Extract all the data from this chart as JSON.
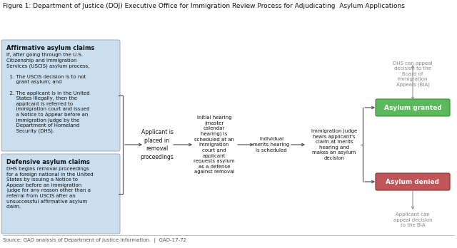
{
  "title": "Figure 1: Department of Justice (DOJ) Executive Office for Immigration Review Process for Adjudicating  Asylum Applications",
  "title_fontsize": 6.5,
  "bg_color": "#ffffff",
  "box_affirmative_color": "#c9dff0",
  "box_defensive_color": "#c9dff0",
  "box_granted_color": "#5cb85c",
  "box_denied_color": "#c0555a",
  "arrow_color": "#444444",
  "text_color": "#111111",
  "gray_text_color": "#888888",
  "footer": "Source: GAO analysis of Department of Justice information.  |  GAO-17-72",
  "affirmative_title": "Affirmative asylum claims",
  "affirmative_body": "If, after going through the U.S.\nCitizenship and Immigration\nServices (USCIS) asylum process,\n\n  1. The USCIS decision is to not\n      grant asylum; and\n\n  2. The applicant is in the United\n      States illegally, then the\n      applicant is referred to\n      immigration court and issued\n      a Notice to Appear before an\n      immigration judge by the\n      Department of Homeland\n      Security (DHS).",
  "defensive_title": "Defensive asylum claims",
  "defensive_body": "DHS begins removal proceedings\nfor a foreign national in the United\nStates by issuing a Notice to\nAppear before an immigration\njudge for any reason other than a\nreferral from USCIS after an\nunsuccessful affirmative asylum\nclaim.",
  "step1_text": "Applicant is\nplaced in\nremoval\nproceedings",
  "step2_text": "Initial hearing\n(master\ncalendar\nhearing) is\nscheduled at an\nimmigration\ncourt and\napplicant\nrequests asylum\nas a defense\nagainst removal",
  "step3_text": "Individual\nmerits hearing\nis scheduled",
  "step4_text": "Immigration judge\nhears applicant's\nclaim at merits\nhearing and\nmakes an asylum\ndecision",
  "granted_text": "Asylum granted",
  "denied_text": "Asylum denied",
  "dhs_appeal_text": "DHS can appeal\ndecision to the\nBoard of\nImmigration\nAppeals (BIA)",
  "applicant_appeal_text": "Applicant can\nappeal decision\nto the BIA"
}
